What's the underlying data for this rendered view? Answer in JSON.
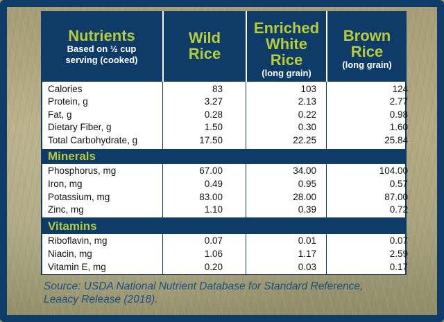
{
  "header": {
    "nutrients_title": "Nutrients",
    "nutrients_subtitle_line1": "Based on ½ cup",
    "nutrients_subtitle_line2": "serving (cooked)",
    "col1_line1": "Wild",
    "col1_line2": "Rice",
    "col2_line1": "Enriched",
    "col2_line2": "White",
    "col2_line3": "Rice",
    "col2_sub": "(long grain)",
    "col3_line1": "Brown",
    "col3_line2": "Rice",
    "col3_sub": "(long grain)"
  },
  "general": [
    {
      "name": "Calories",
      "wild": "83",
      "white": "103",
      "brown": "124"
    },
    {
      "name": "Protein, g",
      "wild": "3.27",
      "white": "2.13",
      "brown": "2.77"
    },
    {
      "name": "Fat, g",
      "wild": "0.28",
      "white": "0.22",
      "brown": "0.98"
    },
    {
      "name": "Dietary Fiber, g",
      "wild": "1.50",
      "white": "0.30",
      "brown": "1.60"
    },
    {
      "name": "Total Carbohydrate, g",
      "wild": "17.50",
      "white": "22.25",
      "brown": "25.84"
    }
  ],
  "minerals_title": "Minerals",
  "minerals": [
    {
      "name": "Phosphorus, mg",
      "wild": "67.00",
      "white": "34.00",
      "brown": "104.00"
    },
    {
      "name": "Iron, mg",
      "wild": "0.49",
      "white": "0.95",
      "brown": "0.57"
    },
    {
      "name": "Potassium, mg",
      "wild": "83.00",
      "white": "28.00",
      "brown": "87.00"
    },
    {
      "name": "Zinc, mg",
      "wild": "1.10",
      "white": "0.39",
      "brown": "0.72"
    }
  ],
  "vitamins_title": "Vitamins",
  "vitamins": [
    {
      "name": "Riboflavin, mg",
      "wild": "0.07",
      "white": "0.01",
      "brown": "0.07"
    },
    {
      "name": "Niacin, mg",
      "wild": "1.06",
      "white": "1.17",
      "brown": "2.59"
    },
    {
      "name": "Vitamin E, mg",
      "wild": "0.20",
      "white": "0.03",
      "brown": "0.17"
    }
  ],
  "source_line1": "Source: USDA National Nutrient Database for Standard Reference,",
  "source_line2": "Leaacy Release (2018)."
}
